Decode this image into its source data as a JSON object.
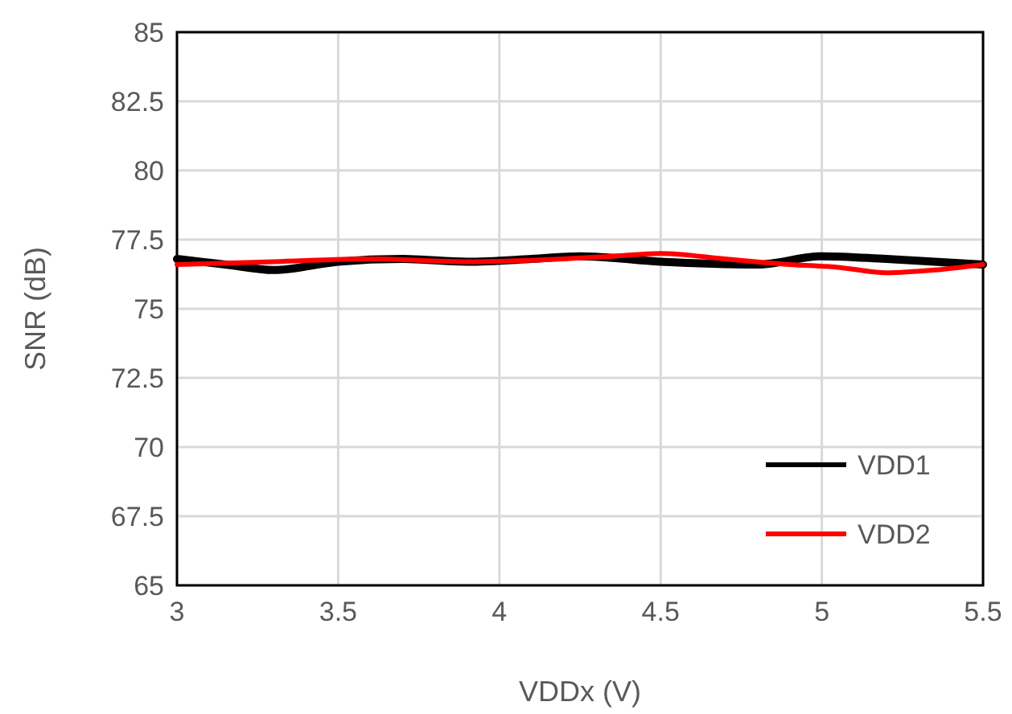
{
  "chart_data": {
    "type": "line",
    "xlabel": "VDDx (V)",
    "ylabel": "SNR (dB)",
    "xlim": [
      3,
      5.5
    ],
    "xticks": [
      3,
      3.5,
      4,
      4.5,
      5,
      5.5
    ],
    "ylim": [
      65,
      85
    ],
    "yticks": [
      65,
      67.5,
      70,
      72.5,
      75,
      77.5,
      80,
      82.5,
      85
    ],
    "grid": true,
    "legend": "bottom right",
    "marker": "none",
    "line_style": "solid",
    "series": [
      {
        "name": "VDD1",
        "color": "#000000",
        "x": [
          3,
          3.15,
          3.3,
          3.5,
          3.7,
          3.9,
          4.1,
          4.25,
          4.5,
          4.8,
          5,
          5.2,
          5.5
        ],
        "values": [
          76.8,
          76.6,
          76.4,
          76.7,
          76.8,
          76.7,
          76.8,
          76.9,
          76.7,
          76.6,
          76.9,
          76.8,
          76.6
        ]
      },
      {
        "name": "VDD2",
        "color": "#ff0000",
        "x": [
          3,
          3.3,
          3.6,
          3.9,
          4.2,
          4.35,
          4.5,
          4.7,
          4.9,
          5.05,
          5.2,
          5.35,
          5.5
        ],
        "values": [
          76.6,
          76.7,
          76.8,
          76.7,
          76.8,
          76.9,
          77,
          76.8,
          76.6,
          76.5,
          76.3,
          76.4,
          76.6
        ]
      }
    ]
  }
}
